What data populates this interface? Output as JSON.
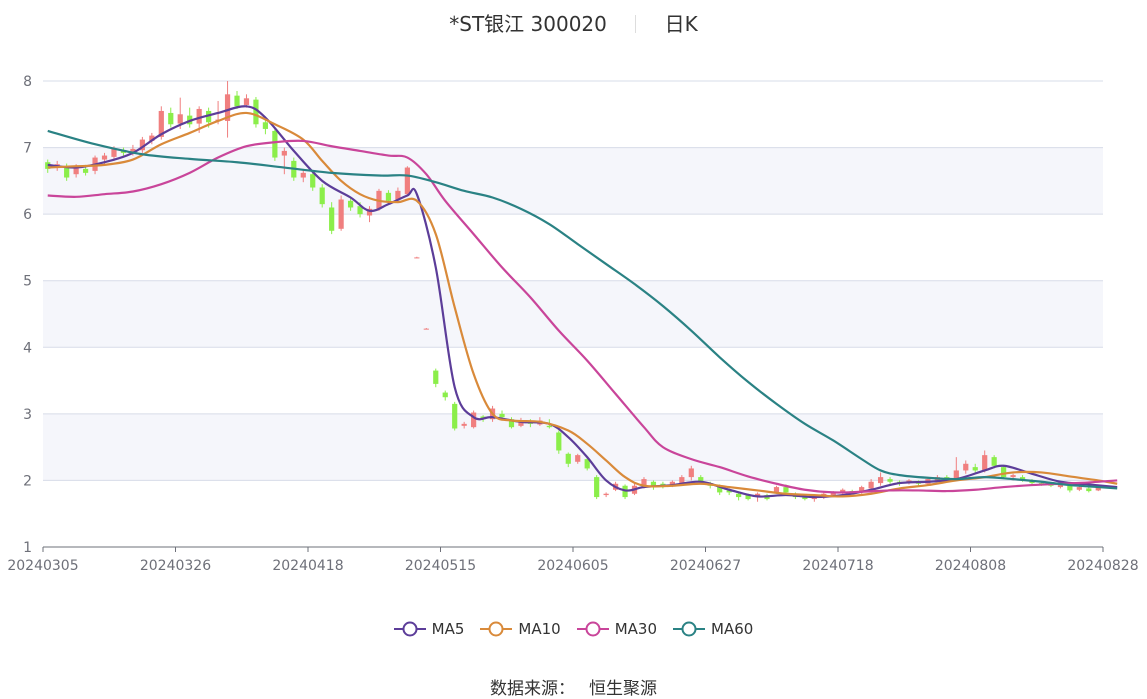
{
  "header": {
    "stock": "*ST银江 300020",
    "period": "日K"
  },
  "footer": {
    "source_label": "数据来源：",
    "source_value": "恒生聚源"
  },
  "legend": [
    {
      "name": "MA5",
      "color": "#5c3d99"
    },
    {
      "name": "MA10",
      "color": "#d98a3a"
    },
    {
      "name": "MA30",
      "color": "#c9459a"
    },
    {
      "name": "MA60",
      "color": "#2a8284"
    }
  ],
  "colors": {
    "up": "#f07f7f",
    "down": "#8bee4a",
    "band": "#f5f6fb",
    "grid": "#d7dce8",
    "axis": "#6e7079"
  },
  "chart_data": {
    "type": "candlestick",
    "title": "*ST银江 300020",
    "ylim": [
      1,
      8
    ],
    "yticks": [
      1,
      2,
      3,
      4,
      5,
      6,
      7,
      8
    ],
    "xticks": [
      "20240305",
      "20240326",
      "20240418",
      "20240515",
      "20240605",
      "20240627",
      "20240718",
      "20240808",
      "20240828"
    ],
    "grid": true,
    "legend_position": "bottom",
    "candles": [
      [
        6.78,
        6.68,
        6.82,
        6.62
      ],
      [
        6.7,
        6.75,
        6.8,
        6.65
      ],
      [
        6.72,
        6.55,
        6.76,
        6.5
      ],
      [
        6.6,
        6.7,
        6.75,
        6.55
      ],
      [
        6.68,
        6.62,
        6.74,
        6.58
      ],
      [
        6.65,
        6.85,
        6.88,
        6.6
      ],
      [
        6.82,
        6.88,
        6.92,
        6.75
      ],
      [
        6.86,
        6.98,
        7.02,
        6.8
      ],
      [
        6.96,
        6.92,
        7.0,
        6.86
      ],
      [
        6.92,
        6.98,
        7.04,
        6.88
      ],
      [
        6.96,
        7.12,
        7.16,
        6.92
      ],
      [
        7.1,
        7.18,
        7.22,
        7.05
      ],
      [
        7.16,
        7.55,
        7.62,
        7.12
      ],
      [
        7.52,
        7.35,
        7.6,
        7.3
      ],
      [
        7.36,
        7.5,
        7.75,
        7.28
      ],
      [
        7.48,
        7.35,
        7.6,
        7.3
      ],
      [
        7.36,
        7.58,
        7.62,
        7.22
      ],
      [
        7.55,
        7.38,
        7.6,
        7.3
      ],
      [
        7.4,
        7.42,
        7.7,
        7.35
      ],
      [
        7.4,
        7.8,
        8.0,
        7.15
      ],
      [
        7.78,
        7.62,
        7.85,
        7.58
      ],
      [
        7.64,
        7.74,
        7.8,
        7.6
      ],
      [
        7.72,
        7.35,
        7.76,
        7.3
      ],
      [
        7.38,
        7.28,
        7.45,
        7.2
      ],
      [
        7.25,
        6.85,
        7.3,
        6.8
      ],
      [
        6.88,
        6.95,
        7.0,
        6.6
      ],
      [
        6.8,
        6.55,
        6.85,
        6.5
      ],
      [
        6.55,
        6.62,
        6.68,
        6.48
      ],
      [
        6.6,
        6.4,
        6.65,
        6.35
      ],
      [
        6.4,
        6.15,
        6.45,
        6.1
      ],
      [
        6.1,
        5.75,
        6.18,
        5.7
      ],
      [
        5.78,
        6.22,
        6.28,
        5.75
      ],
      [
        6.2,
        6.1,
        6.25,
        6.05
      ],
      [
        6.12,
        6.0,
        6.18,
        5.95
      ],
      [
        5.98,
        6.08,
        6.12,
        5.88
      ],
      [
        6.08,
        6.35,
        6.38,
        6.05
      ],
      [
        6.32,
        6.2,
        6.36,
        6.15
      ],
      [
        6.22,
        6.35,
        6.4,
        6.18
      ],
      [
        6.3,
        6.7,
        6.72,
        6.28
      ],
      [
        5.35,
        5.35,
        5.36,
        5.34
      ],
      [
        4.28,
        4.28,
        4.29,
        4.27
      ],
      [
        3.65,
        3.45,
        3.68,
        3.4
      ],
      [
        3.32,
        3.25,
        3.35,
        3.2
      ],
      [
        3.15,
        2.78,
        3.18,
        2.75
      ],
      [
        2.82,
        2.85,
        2.88,
        2.78
      ],
      [
        2.8,
        3.02,
        3.05,
        2.78
      ],
      [
        2.96,
        2.92,
        2.98,
        2.88
      ],
      [
        2.92,
        3.08,
        3.12,
        2.88
      ],
      [
        3.0,
        2.95,
        3.05,
        2.92
      ],
      [
        2.92,
        2.8,
        2.95,
        2.78
      ],
      [
        2.82,
        2.9,
        2.94,
        2.8
      ],
      [
        2.88,
        2.85,
        2.92,
        2.8
      ],
      [
        2.84,
        2.9,
        2.95,
        2.82
      ],
      [
        2.82,
        2.8,
        2.92,
        2.78
      ],
      [
        2.72,
        2.45,
        2.75,
        2.4
      ],
      [
        2.4,
        2.25,
        2.42,
        2.2
      ],
      [
        2.28,
        2.38,
        2.4,
        2.25
      ],
      [
        2.32,
        2.18,
        2.35,
        2.15
      ],
      [
        2.05,
        1.75,
        2.08,
        1.72
      ],
      [
        1.78,
        1.8,
        1.82,
        1.75
      ],
      [
        1.86,
        1.95,
        1.98,
        1.84
      ],
      [
        1.92,
        1.75,
        1.94,
        1.72
      ],
      [
        1.8,
        1.92,
        1.95,
        1.78
      ],
      [
        1.92,
        2.02,
        2.05,
        1.88
      ],
      [
        1.98,
        1.9,
        2.0,
        1.86
      ],
      [
        1.95,
        1.9,
        1.98,
        1.88
      ],
      [
        1.92,
        1.98,
        2.0,
        1.9
      ],
      [
        1.95,
        2.05,
        2.08,
        1.92
      ],
      [
        2.05,
        2.18,
        2.22,
        2.0
      ],
      [
        2.05,
        1.98,
        2.08,
        1.95
      ],
      [
        1.96,
        1.92,
        1.98,
        1.88
      ],
      [
        1.92,
        1.82,
        1.94,
        1.78
      ],
      [
        1.85,
        1.82,
        1.88,
        1.78
      ],
      [
        1.8,
        1.75,
        1.82,
        1.7
      ],
      [
        1.78,
        1.72,
        1.8,
        1.7
      ],
      [
        1.75,
        1.8,
        1.82,
        1.68
      ],
      [
        1.78,
        1.72,
        1.8,
        1.7
      ],
      [
        1.82,
        1.9,
        1.92,
        1.8
      ],
      [
        1.9,
        1.82,
        1.94,
        1.78
      ],
      [
        1.8,
        1.75,
        1.82,
        1.72
      ],
      [
        1.76,
        1.72,
        1.78,
        1.7
      ],
      [
        1.72,
        1.75,
        1.78,
        1.68
      ],
      [
        1.74,
        1.8,
        1.82,
        1.72
      ],
      [
        1.78,
        1.82,
        1.84,
        1.75
      ],
      [
        1.82,
        1.86,
        1.88,
        1.78
      ],
      [
        1.84,
        1.82,
        1.86,
        1.8
      ],
      [
        1.82,
        1.9,
        1.92,
        1.8
      ],
      [
        1.88,
        1.98,
        2.02,
        1.85
      ],
      [
        1.96,
        2.05,
        2.12,
        1.92
      ],
      [
        2.02,
        1.98,
        2.05,
        1.95
      ],
      [
        1.98,
        1.96,
        2.0,
        1.92
      ],
      [
        1.96,
        2.0,
        2.02,
        1.94
      ],
      [
        1.98,
        1.95,
        2.0,
        1.92
      ],
      [
        1.95,
        2.02,
        2.05,
        1.92
      ],
      [
        2.0,
        2.05,
        2.08,
        1.98
      ],
      [
        2.05,
        2.02,
        2.08,
        2.0
      ],
      [
        2.02,
        2.15,
        2.35,
        2.0
      ],
      [
        2.15,
        2.25,
        2.3,
        2.1
      ],
      [
        2.2,
        2.15,
        2.25,
        2.12
      ],
      [
        2.15,
        2.38,
        2.45,
        2.12
      ],
      [
        2.35,
        2.22,
        2.38,
        2.18
      ],
      [
        2.2,
        2.05,
        2.22,
        2.02
      ],
      [
        2.05,
        2.08,
        2.1,
        2.0
      ],
      [
        2.05,
        2.02,
        2.08,
        1.98
      ],
      [
        2.0,
        1.96,
        2.02,
        1.94
      ],
      [
        1.96,
        1.95,
        1.98,
        1.92
      ],
      [
        1.95,
        1.92,
        1.96,
        1.9
      ],
      [
        1.9,
        1.95,
        1.96,
        1.88
      ],
      [
        1.92,
        1.85,
        1.94,
        1.82
      ],
      [
        1.86,
        1.9,
        1.92,
        1.84
      ],
      [
        1.88,
        1.84,
        1.9,
        1.82
      ],
      [
        1.85,
        1.92,
        1.93,
        1.84
      ]
    ],
    "series": [
      {
        "name": "MA5",
        "values": [
          [
            0,
            6.74
          ],
          [
            3,
            6.7
          ],
          [
            6,
            6.78
          ],
          [
            9,
            6.92
          ],
          [
            12,
            7.2
          ],
          [
            15,
            7.4
          ],
          [
            18,
            7.52
          ],
          [
            21,
            7.62
          ],
          [
            23,
            7.45
          ],
          [
            26,
            6.95
          ],
          [
            29,
            6.5
          ],
          [
            32,
            6.25
          ],
          [
            34,
            6.05
          ],
          [
            36,
            6.15
          ],
          [
            38,
            6.28
          ],
          [
            39,
            6.3
          ],
          [
            41,
            5.2
          ],
          [
            43,
            3.4
          ],
          [
            45,
            2.95
          ],
          [
            47,
            2.95
          ],
          [
            50,
            2.88
          ],
          [
            53,
            2.85
          ],
          [
            55,
            2.65
          ],
          [
            57,
            2.35
          ],
          [
            59,
            2.0
          ],
          [
            61,
            1.85
          ],
          [
            63,
            1.9
          ],
          [
            66,
            1.93
          ],
          [
            69,
            1.98
          ],
          [
            72,
            1.86
          ],
          [
            75,
            1.76
          ],
          [
            78,
            1.78
          ],
          [
            81,
            1.75
          ],
          [
            84,
            1.78
          ],
          [
            87,
            1.86
          ],
          [
            90,
            1.96
          ],
          [
            93,
            1.98
          ],
          [
            96,
            2.02
          ],
          [
            99,
            2.15
          ],
          [
            101,
            2.22
          ],
          [
            104,
            2.1
          ],
          [
            107,
            1.98
          ],
          [
            110,
            1.94
          ],
          [
            113,
            1.9
          ]
        ]
      },
      {
        "name": "MA10",
        "values": [
          [
            0,
            6.7
          ],
          [
            3,
            6.72
          ],
          [
            6,
            6.74
          ],
          [
            9,
            6.82
          ],
          [
            12,
            7.05
          ],
          [
            15,
            7.22
          ],
          [
            18,
            7.4
          ],
          [
            21,
            7.52
          ],
          [
            24,
            7.35
          ],
          [
            27,
            7.12
          ],
          [
            29,
            6.8
          ],
          [
            31,
            6.5
          ],
          [
            33,
            6.3
          ],
          [
            35,
            6.2
          ],
          [
            37,
            6.18
          ],
          [
            39,
            6.2
          ],
          [
            41,
            5.7
          ],
          [
            43,
            4.6
          ],
          [
            45,
            3.6
          ],
          [
            47,
            3.0
          ],
          [
            49,
            2.9
          ],
          [
            52,
            2.88
          ],
          [
            55,
            2.75
          ],
          [
            57,
            2.55
          ],
          [
            59,
            2.3
          ],
          [
            61,
            2.05
          ],
          [
            63,
            1.92
          ],
          [
            66,
            1.92
          ],
          [
            69,
            1.95
          ],
          [
            72,
            1.9
          ],
          [
            75,
            1.85
          ],
          [
            78,
            1.8
          ],
          [
            81,
            1.78
          ],
          [
            84,
            1.76
          ],
          [
            87,
            1.8
          ],
          [
            90,
            1.88
          ],
          [
            93,
            1.93
          ],
          [
            96,
            2.0
          ],
          [
            99,
            2.05
          ],
          [
            102,
            2.12
          ],
          [
            105,
            2.12
          ],
          [
            108,
            2.06
          ],
          [
            111,
            2.0
          ],
          [
            113,
            1.95
          ]
        ]
      },
      {
        "name": "MA30",
        "values": [
          [
            0,
            6.28
          ],
          [
            3,
            6.26
          ],
          [
            6,
            6.3
          ],
          [
            9,
            6.34
          ],
          [
            12,
            6.45
          ],
          [
            15,
            6.62
          ],
          [
            18,
            6.85
          ],
          [
            21,
            7.02
          ],
          [
            24,
            7.08
          ],
          [
            27,
            7.1
          ],
          [
            30,
            7.02
          ],
          [
            33,
            6.95
          ],
          [
            36,
            6.88
          ],
          [
            38,
            6.85
          ],
          [
            40,
            6.6
          ],
          [
            42,
            6.2
          ],
          [
            45,
            5.7
          ],
          [
            48,
            5.2
          ],
          [
            51,
            4.75
          ],
          [
            54,
            4.25
          ],
          [
            57,
            3.8
          ],
          [
            60,
            3.3
          ],
          [
            63,
            2.8
          ],
          [
            65,
            2.5
          ],
          [
            68,
            2.32
          ],
          [
            71,
            2.2
          ],
          [
            74,
            2.06
          ],
          [
            77,
            1.95
          ],
          [
            80,
            1.86
          ],
          [
            83,
            1.82
          ],
          [
            86,
            1.83
          ],
          [
            89,
            1.85
          ],
          [
            92,
            1.85
          ],
          [
            95,
            1.84
          ],
          [
            98,
            1.86
          ],
          [
            101,
            1.9
          ],
          [
            104,
            1.93
          ],
          [
            107,
            1.95
          ],
          [
            110,
            1.97
          ],
          [
            113,
            2.0
          ]
        ]
      },
      {
        "name": "MA60",
        "values": [
          [
            0,
            7.25
          ],
          [
            5,
            7.05
          ],
          [
            10,
            6.9
          ],
          [
            15,
            6.83
          ],
          [
            20,
            6.78
          ],
          [
            25,
            6.7
          ],
          [
            30,
            6.62
          ],
          [
            35,
            6.58
          ],
          [
            38,
            6.58
          ],
          [
            41,
            6.48
          ],
          [
            44,
            6.35
          ],
          [
            47,
            6.25
          ],
          [
            50,
            6.08
          ],
          [
            53,
            5.85
          ],
          [
            56,
            5.55
          ],
          [
            59,
            5.25
          ],
          [
            62,
            4.95
          ],
          [
            65,
            4.62
          ],
          [
            68,
            4.25
          ],
          [
            71,
            3.85
          ],
          [
            74,
            3.48
          ],
          [
            77,
            3.15
          ],
          [
            80,
            2.85
          ],
          [
            83,
            2.6
          ],
          [
            86,
            2.32
          ],
          [
            88,
            2.15
          ],
          [
            90,
            2.08
          ],
          [
            93,
            2.04
          ],
          [
            96,
            2.02
          ],
          [
            99,
            2.05
          ],
          [
            102,
            2.02
          ],
          [
            105,
            1.98
          ],
          [
            108,
            1.93
          ],
          [
            111,
            1.9
          ],
          [
            113,
            1.88
          ]
        ]
      }
    ]
  }
}
